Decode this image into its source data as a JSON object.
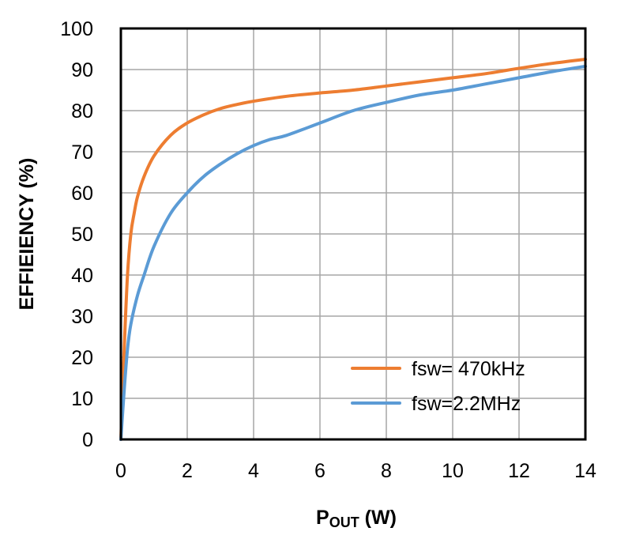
{
  "chart_data": {
    "type": "line",
    "title": "",
    "xlabel_main": "P",
    "xlabel_sub": "OUT",
    "xlabel_unit": " (W)",
    "ylabel": "EFFIEIENCY (%)",
    "xlim": [
      0,
      14
    ],
    "ylim": [
      0,
      100
    ],
    "xticks": [
      0,
      2,
      4,
      6,
      8,
      10,
      12,
      14
    ],
    "yticks": [
      0,
      10,
      20,
      30,
      40,
      50,
      60,
      70,
      80,
      90,
      100
    ],
    "grid": true,
    "legend_position": "bottom-right",
    "series": [
      {
        "name": "fsw= 470kHz",
        "color": "#ed7d31",
        "x": [
          0,
          0.1,
          0.2,
          0.3,
          0.4,
          0.5,
          0.7,
          1.0,
          1.5,
          2.0,
          2.5,
          3.0,
          3.5,
          4.0,
          5.0,
          6.0,
          7.0,
          8.0,
          9.0,
          10.0,
          11.0,
          12.0,
          13.0,
          14.0
        ],
        "y": [
          0,
          22,
          40,
          50,
          55,
          59,
          64,
          69,
          74,
          77,
          79,
          80.5,
          81.5,
          82.3,
          83.5,
          84.3,
          85,
          86,
          87,
          88,
          89,
          90.3,
          91.5,
          92.5
        ]
      },
      {
        "name": "fsw=2.2MHz",
        "color": "#5b9bd5",
        "x": [
          0,
          0.1,
          0.2,
          0.3,
          0.5,
          0.7,
          1.0,
          1.5,
          2.0,
          2.5,
          3.0,
          3.5,
          4.0,
          4.5,
          5.0,
          6.0,
          7.0,
          8.0,
          9.0,
          10.0,
          11.0,
          12.0,
          13.0,
          14.0
        ],
        "y": [
          0,
          12,
          22,
          28,
          35,
          40,
          47,
          55,
          60,
          64,
          67,
          69.5,
          71.5,
          73,
          74,
          77,
          80,
          82,
          83.8,
          85,
          86.5,
          88,
          89.5,
          90.8
        ]
      }
    ]
  }
}
